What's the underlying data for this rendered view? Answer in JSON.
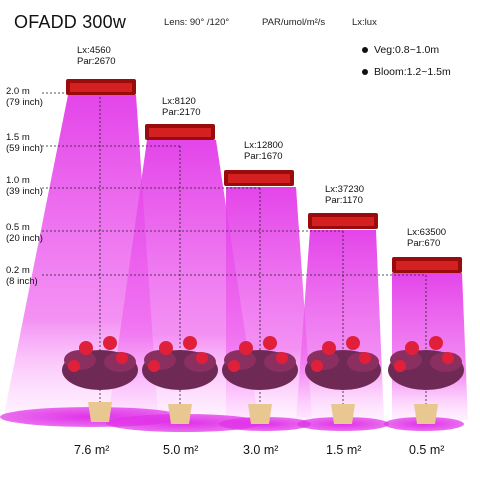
{
  "header": {
    "brand": "OFADD 300w",
    "lens": "Lens:  90° /120°",
    "par_unit": "PAR/umol/m²/s",
    "lux_unit": "Lx:lux"
  },
  "legend": [
    {
      "label": "Veg:0.8~1.0m"
    },
    {
      "label": "Bloom:1.2~1.5m"
    }
  ],
  "heights": [
    {
      "m": "2.0 m",
      "inch": "(79 inch)"
    },
    {
      "m": "1.5 m",
      "inch": "(59 inch)"
    },
    {
      "m": "1.0 m",
      "inch": "(39 inch)"
    },
    {
      "m": "0.5 m",
      "inch": "(20 inch)"
    },
    {
      "m": "0.2 m",
      "inch": "(8 inch)"
    }
  ],
  "readings": [
    {
      "lx": "Lx:4560",
      "par": "Par:2670"
    },
    {
      "lx": "Lx:8120",
      "par": "Par:2170"
    },
    {
      "lx": "Lx:12800",
      "par": "Par:1670"
    },
    {
      "lx": "Lx:37230",
      "par": "Par:1170"
    },
    {
      "lx": "Lx:63500",
      "par": "Par:670"
    }
  ],
  "coverage": [
    {
      "area": "7.6 m²"
    },
    {
      "area": "5.0 m²"
    },
    {
      "area": "3.0 m²"
    },
    {
      "area": "1.5 m²"
    },
    {
      "area": "0.5 m²"
    }
  ],
  "colors": {
    "beam": "#e040e6",
    "lamp": "#b01010",
    "leaf": "#7a2a5a",
    "flower": "#e0203a",
    "pot": "#e8c890"
  }
}
